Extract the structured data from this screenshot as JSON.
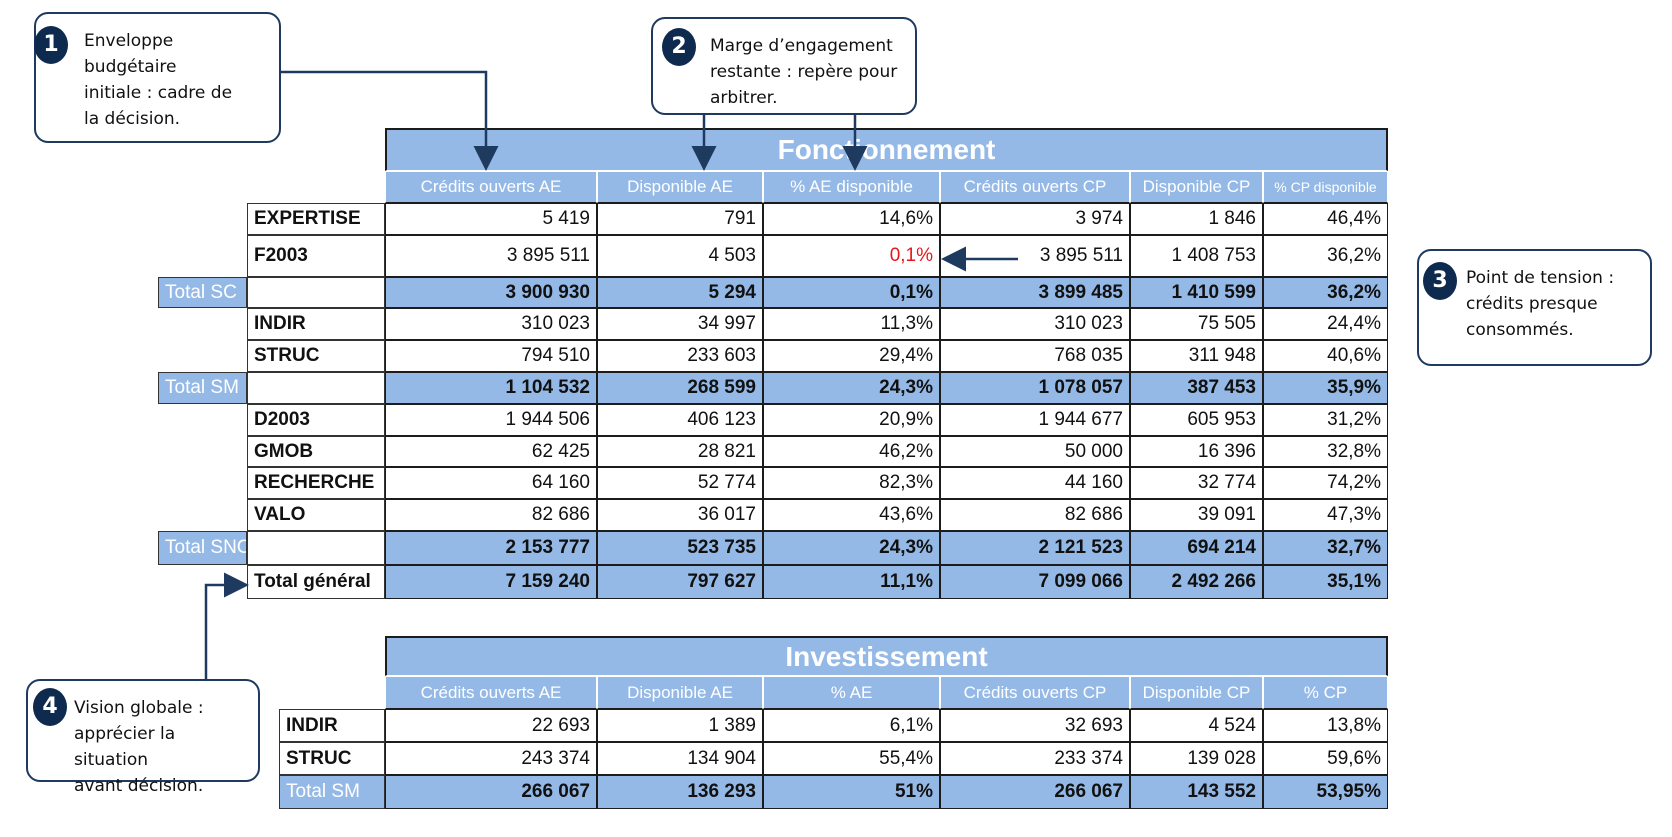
{
  "callouts": [
    {
      "number": "1",
      "lines": [
        "Enveloppe budgétaire",
        "initiale : cadre de",
        "la décision."
      ]
    },
    {
      "number": "2",
      "lines": [
        "Marge d’engagement",
        "restante : repère pour",
        "arbitrer."
      ]
    },
    {
      "number": "3",
      "lines": [
        "Point de tension :",
        "crédits presque",
        "consommés."
      ]
    },
    {
      "number": "4",
      "lines": [
        "Vision globale :",
        "apprécier la situation",
        "avant décision."
      ]
    }
  ],
  "tables": [
    {
      "title": "Fonctionnement",
      "columns": [
        "Crédits ouverts AE",
        "Disponible AE",
        "% AE disponible",
        "Crédits ouverts CP",
        "Disponible CP",
        "% CP disponible"
      ],
      "rows": [
        {
          "label": "EXPERTISE",
          "cells": [
            "5 419",
            "791",
            "14,6%",
            "3 974",
            "1 846",
            "46,4%"
          ]
        },
        {
          "label": "F2003",
          "cells": [
            "3 895 511",
            "4 503",
            {
              "text": "0,1%",
              "color": "#e8161b"
            },
            "3 895 511",
            "1 408 753",
            "36,2%"
          ]
        },
        {
          "side_label": "Total SC",
          "style": "subtotal",
          "cells": [
            "3 900 930",
            "5 294",
            "0,1%",
            "3 899 485",
            "1 410 599",
            "36,2%"
          ]
        },
        {
          "label": "INDIR",
          "cells": [
            "310 023",
            "34 997",
            "11,3%",
            "310 023",
            "75 505",
            "24,4%"
          ]
        },
        {
          "label": "STRUC",
          "cells": [
            "794 510",
            "233 603",
            "29,4%",
            "768 035",
            "311 948",
            "40,6%"
          ]
        },
        {
          "side_label": "Total SM",
          "style": "subtotal",
          "cells": [
            "1 104 532",
            "268 599",
            "24,3%",
            "1 078 057",
            "387 453",
            "35,9%"
          ]
        },
        {
          "label": "D2003",
          "cells": [
            "1 944 506",
            "406 123",
            "20,9%",
            "1 944 677",
            "605 953",
            "31,2%"
          ]
        },
        {
          "label": "GMOB",
          "cells": [
            "62 425",
            "28 821",
            "46,2%",
            "50 000",
            "16 396",
            "32,8%"
          ]
        },
        {
          "label": "RECHERCHE",
          "cells": [
            "64 160",
            "52 774",
            "82,3%",
            "44 160",
            "32 774",
            "74,2%"
          ]
        },
        {
          "label": "VALO",
          "cells": [
            "82 686",
            "36 017",
            "43,6%",
            "82 686",
            "39 091",
            "47,3%"
          ]
        },
        {
          "side_label": "Total SNC",
          "style": "subtotal",
          "cells": [
            "2 153 777",
            "523 735",
            "24,3%",
            "2 121 523",
            "694 214",
            "32,7%"
          ]
        },
        {
          "label": "Total général",
          "style": "total",
          "cells": [
            "7 159 240",
            "797 627",
            "11,1%",
            "7 099 066",
            "2 492 266",
            "35,1%"
          ]
        }
      ]
    },
    {
      "title": "Investissement",
      "columns": [
        "Crédits ouverts AE",
        "Disponible AE",
        "% AE",
        "Crédits ouverts CP",
        "Disponible CP",
        "% CP"
      ],
      "rows": [
        {
          "label": "INDIR",
          "cells": [
            "22 693",
            "1 389",
            "6,1%",
            "32 693",
            "4 524",
            "13,8%"
          ]
        },
        {
          "label": "STRUC",
          "cells": [
            "243 374",
            "134 904",
            "55,4%",
            "233 374",
            "139 028",
            "59,6%"
          ]
        },
        {
          "label": "Total SM",
          "style": "subtotal",
          "cells": [
            "266 067",
            "136 293",
            "51%",
            "266 067",
            "143 552",
            "53,95%"
          ]
        }
      ]
    }
  ]
}
